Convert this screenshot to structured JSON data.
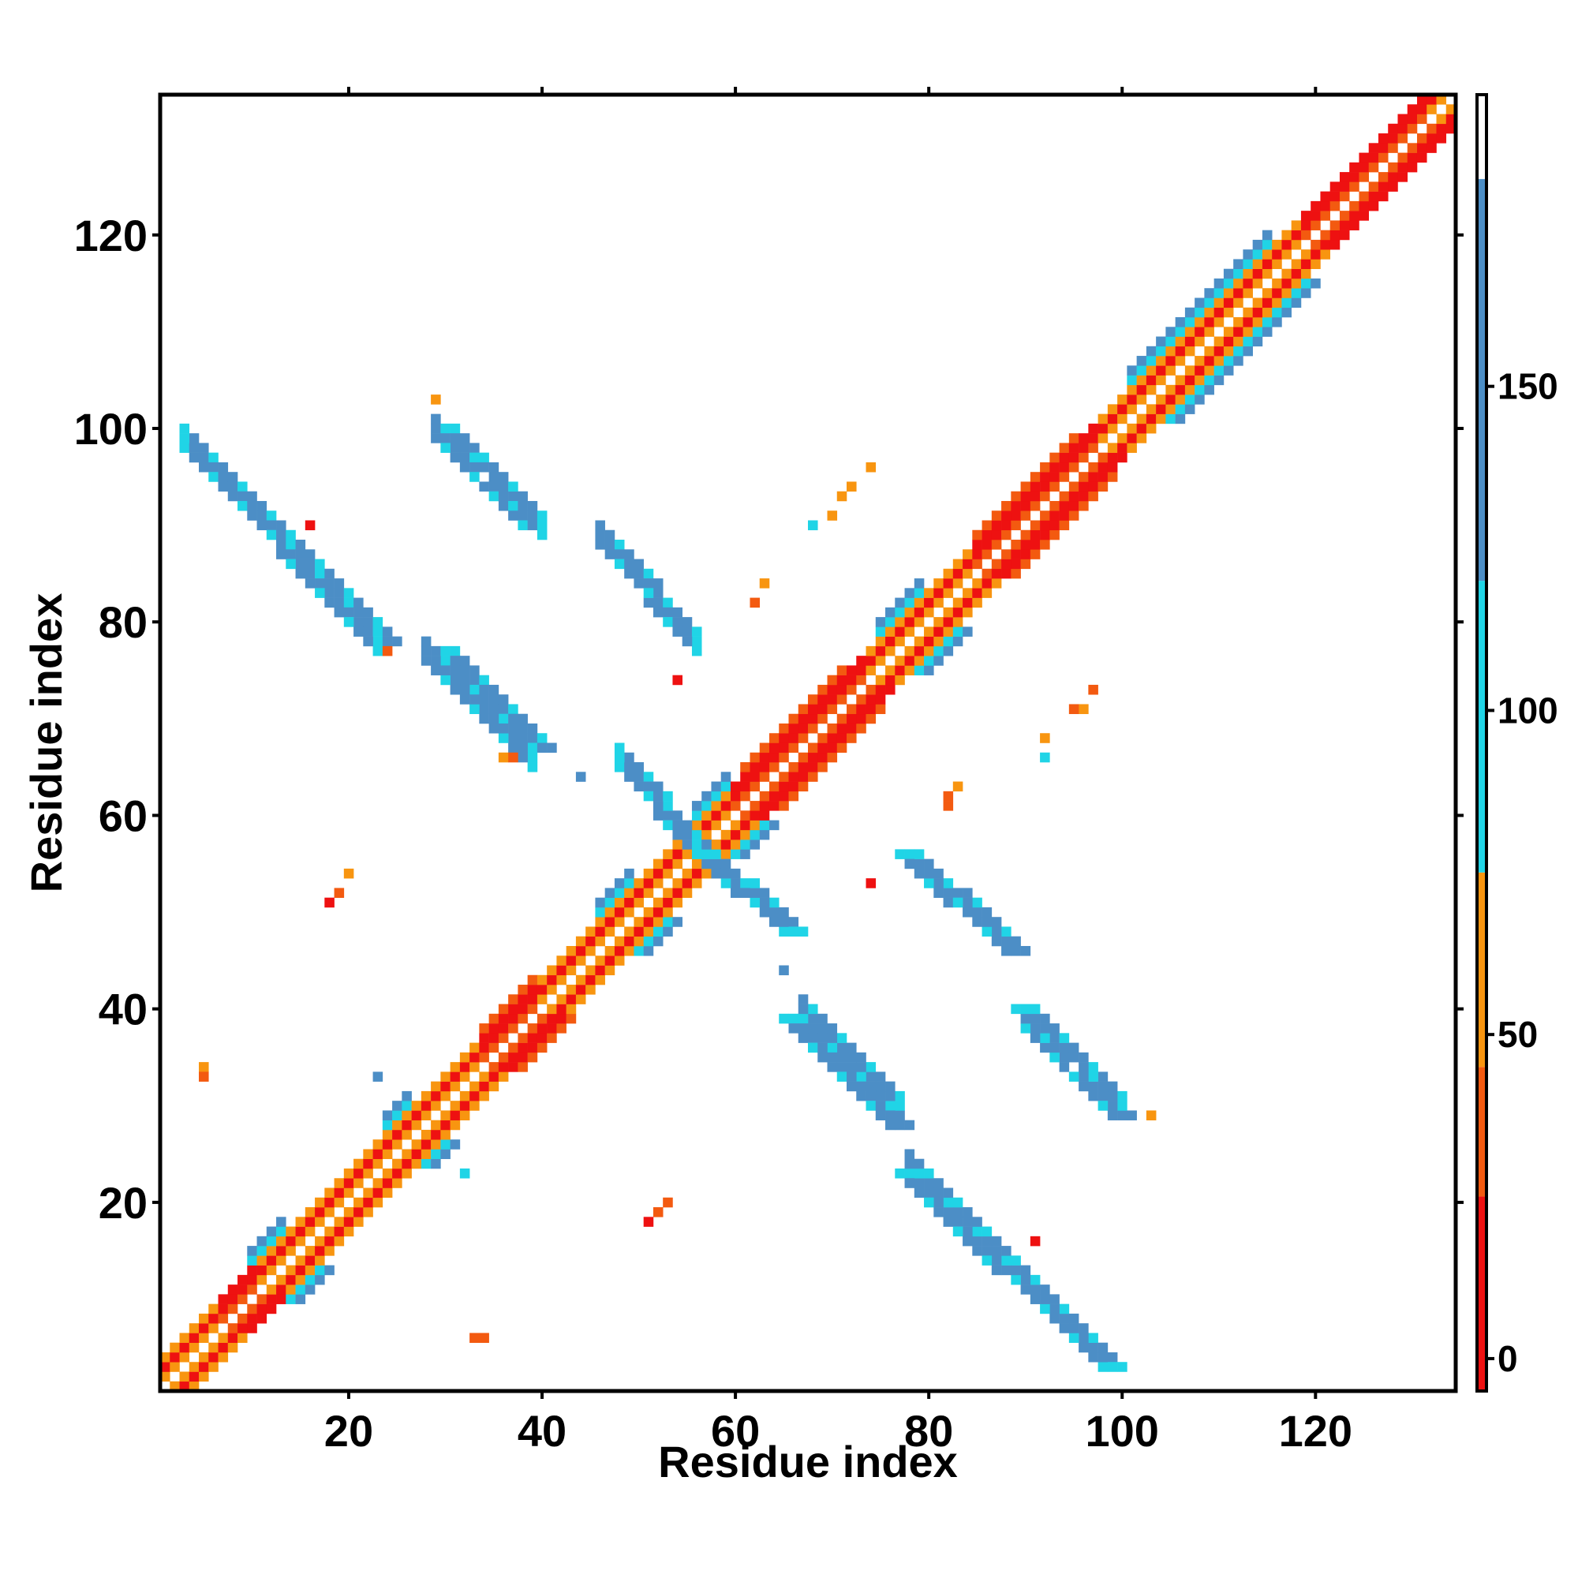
{
  "chart_data": {
    "type": "heatmap",
    "xlabel": "Residue index",
    "ylabel": "Residue index",
    "xlim": [
      1,
      134
    ],
    "ylim": [
      1,
      134
    ],
    "xticks": [
      20,
      40,
      60,
      80,
      100,
      120
    ],
    "yticks": [
      20,
      40,
      60,
      80,
      100,
      120
    ],
    "colorbar": {
      "ticks": [
        0,
        50,
        100,
        150
      ],
      "range": [
        -5,
        195
      ],
      "bands": [
        {
          "from": -5,
          "to": 25,
          "color": "#ee1111"
        },
        {
          "from": 25,
          "to": 45,
          "color": "#f35a10"
        },
        {
          "from": 45,
          "to": 75,
          "color": "#f89510"
        },
        {
          "from": 75,
          "to": 120,
          "color": "#20d4e6"
        },
        {
          "from": 120,
          "to": 182,
          "color": "#4c8ec6"
        },
        {
          "from": 182,
          "to": 195,
          "color": "#ffffff"
        }
      ]
    },
    "colors": {
      "red": "#ee1111",
      "orange_red": "#f35a10",
      "orange": "#f89510",
      "cyan": "#20d4e6",
      "steel_blue": "#4c8ec6"
    },
    "diagonal_band": {
      "from": 1,
      "to": 134
    },
    "strands": [
      {
        "x_start": 4,
        "y_start": 98,
        "x_end": 24,
        "y_end": 78,
        "value": 165
      },
      {
        "x_start": 30,
        "y_start": 100,
        "x_end": 39,
        "y_end": 90,
        "value": 165
      },
      {
        "x_start": 47,
        "y_start": 88,
        "x_end": 55,
        "y_end": 79,
        "value": 165
      },
      {
        "x_start": 30,
        "y_start": 77,
        "x_end": 40,
        "y_end": 67,
        "value": 165
      },
      {
        "x_start": 49,
        "y_start": 65,
        "x_end": 56,
        "y_end": 57,
        "value": 165
      },
      {
        "x_start": 57,
        "y_start": 56,
        "x_end": 66,
        "y_end": 48,
        "value": 165
      },
      {
        "x_start": 78,
        "y_start": 56,
        "x_end": 89,
        "y_end": 46,
        "value": 165
      },
      {
        "x_start": 66,
        "y_start": 39,
        "x_end": 77,
        "y_end": 28,
        "value": 165
      },
      {
        "x_start": 90,
        "y_start": 40,
        "x_end": 100,
        "y_end": 29,
        "value": 165
      },
      {
        "x_start": 78,
        "y_start": 23,
        "x_end": 99,
        "y_end": 3,
        "value": 165
      }
    ],
    "cross_cells": [
      {
        "x": 29,
        "y": 103,
        "value": 60
      },
      {
        "x": 16,
        "y": 90,
        "value": 10
      },
      {
        "x": 74,
        "y": 96,
        "value": 60
      },
      {
        "x": 72,
        "y": 94,
        "value": 55
      },
      {
        "x": 71,
        "y": 93,
        "value": 50
      },
      {
        "x": 68,
        "y": 90,
        "value": 95
      },
      {
        "x": 70,
        "y": 91,
        "value": 55
      },
      {
        "x": 63,
        "y": 84,
        "value": 55
      },
      {
        "x": 62,
        "y": 82,
        "value": 40
      },
      {
        "x": 54,
        "y": 74,
        "value": 10
      },
      {
        "x": 24,
        "y": 77,
        "value": 40
      },
      {
        "x": 36,
        "y": 66,
        "value": 50
      },
      {
        "x": 37,
        "y": 66,
        "value": 40
      },
      {
        "x": 44,
        "y": 64,
        "value": 140
      },
      {
        "x": 97,
        "y": 73,
        "value": 40
      },
      {
        "x": 96,
        "y": 71,
        "value": 45
      },
      {
        "x": 95,
        "y": 71,
        "value": 40
      },
      {
        "x": 92,
        "y": 68,
        "value": 55
      },
      {
        "x": 92,
        "y": 66,
        "value": 95
      },
      {
        "x": 83,
        "y": 63,
        "value": 55
      },
      {
        "x": 82,
        "y": 62,
        "value": 40
      },
      {
        "x": 82,
        "y": 61,
        "value": 40
      },
      {
        "x": 20,
        "y": 54,
        "value": 60
      },
      {
        "x": 19,
        "y": 52,
        "value": 40
      },
      {
        "x": 18,
        "y": 51,
        "value": 10
      },
      {
        "x": 74,
        "y": 53,
        "value": 10
      },
      {
        "x": 65,
        "y": 44,
        "value": 140
      },
      {
        "x": 5,
        "y": 34,
        "value": 55
      },
      {
        "x": 5,
        "y": 33,
        "value": 40
      },
      {
        "x": 23,
        "y": 33,
        "value": 140
      },
      {
        "x": 32,
        "y": 23,
        "value": 95
      },
      {
        "x": 103,
        "y": 29,
        "value": 60
      },
      {
        "x": 53,
        "y": 20,
        "value": 40
      },
      {
        "x": 52,
        "y": 19,
        "value": 40
      },
      {
        "x": 51,
        "y": 18,
        "value": 10
      },
      {
        "x": 91,
        "y": 16,
        "value": 10
      },
      {
        "x": 33,
        "y": 6,
        "value": 40
      },
      {
        "x": 34,
        "y": 6,
        "value": 40
      }
    ]
  }
}
